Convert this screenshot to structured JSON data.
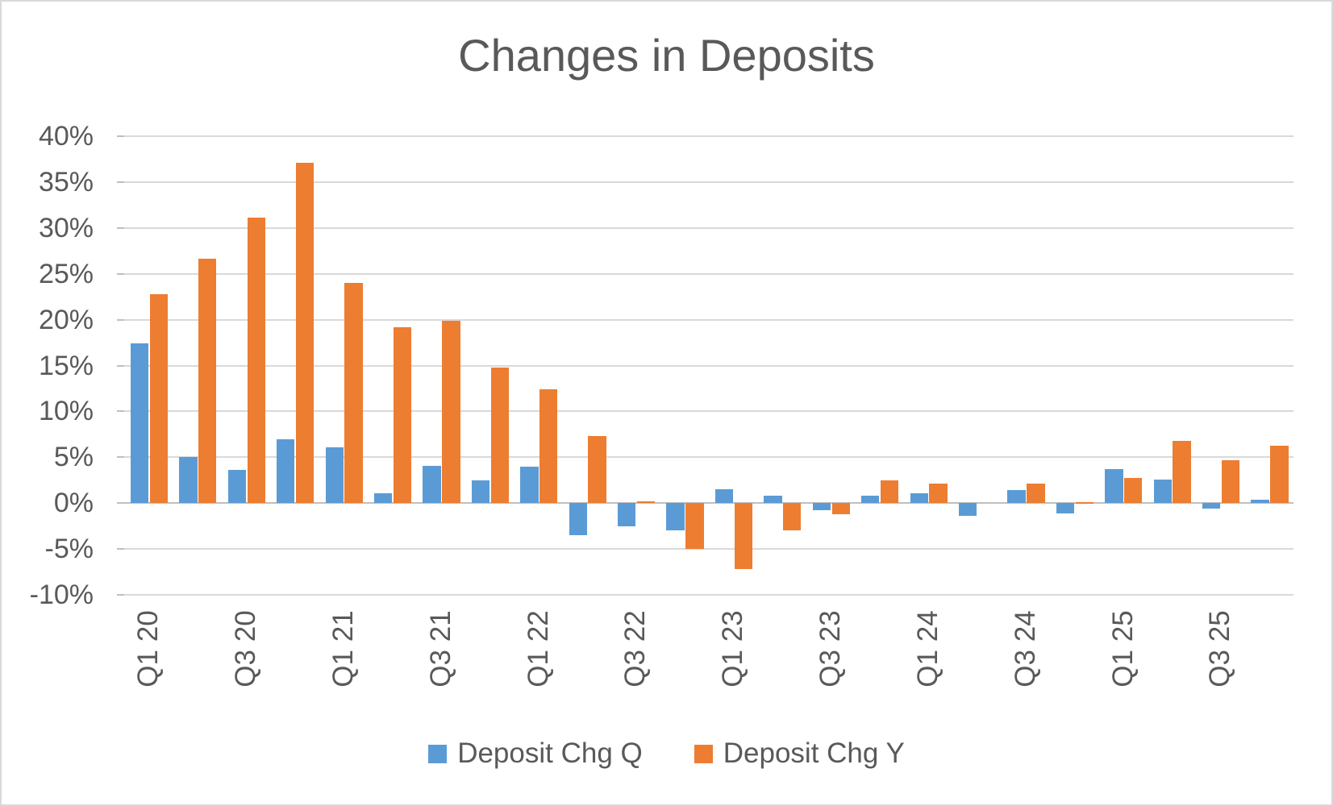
{
  "chart_data": {
    "type": "bar",
    "title": "Changes in Deposits",
    "categories": [
      "Q1 20",
      "Q2 20",
      "Q3 20",
      "Q4 20",
      "Q1 21",
      "Q2 21",
      "Q3 21",
      "Q4 21",
      "Q1 22",
      "Q2 22",
      "Q3 22",
      "Q4 22",
      "Q1 23",
      "Q2 23",
      "Q3 23",
      "Q4 23",
      "Q1 24",
      "Q2 24",
      "Q3 24",
      "Q4 24",
      "Q1 25",
      "Q2 25",
      "Q3 25",
      "Q4 25"
    ],
    "x_tick_labels": [
      "Q1 20",
      "Q3 20",
      "Q1 21",
      "Q3 21",
      "Q1 22",
      "Q3 22",
      "Q1 23",
      "Q3 23",
      "Q1 24",
      "Q3 24",
      "Q1 25",
      "Q3 25"
    ],
    "series": [
      {
        "name": "Deposit Chg Q",
        "color": "#5B9BD5",
        "values": [
          17.4,
          5.0,
          3.6,
          7.0,
          6.1,
          1.1,
          4.1,
          2.5,
          4.0,
          -3.5,
          -2.5,
          -3.0,
          1.5,
          0.8,
          -0.8,
          0.8,
          1.1,
          -1.4,
          1.4,
          -1.1,
          3.7,
          2.6,
          -0.6,
          0.4
        ]
      },
      {
        "name": "Deposit Chg Y",
        "color": "#ED7D31",
        "values": [
          22.8,
          26.6,
          31.1,
          37.1,
          24.0,
          19.2,
          19.9,
          14.8,
          12.4,
          7.3,
          0.2,
          -5.0,
          -7.2,
          -3.0,
          -1.2,
          2.5,
          2.1,
          0.0,
          2.1,
          0.1,
          2.7,
          6.8,
          4.7,
          6.3
        ]
      }
    ],
    "ylim": [
      -10,
      40
    ],
    "y_tick_step": 5,
    "y_tick_labels": [
      "40%",
      "35%",
      "30%",
      "25%",
      "20%",
      "15%",
      "10%",
      "5%",
      "0%",
      "-5%",
      "-10%"
    ],
    "value_unit": "percent",
    "grid": true,
    "legend_position": "bottom",
    "colors": {
      "series_q": "#5B9BD5",
      "series_y": "#ED7D31",
      "text": "#595959",
      "gridline": "#D9D9D9",
      "axis_line": "#BFBFBF",
      "background": "#FFFFFF",
      "frame_border": "#D9D9D9"
    }
  }
}
